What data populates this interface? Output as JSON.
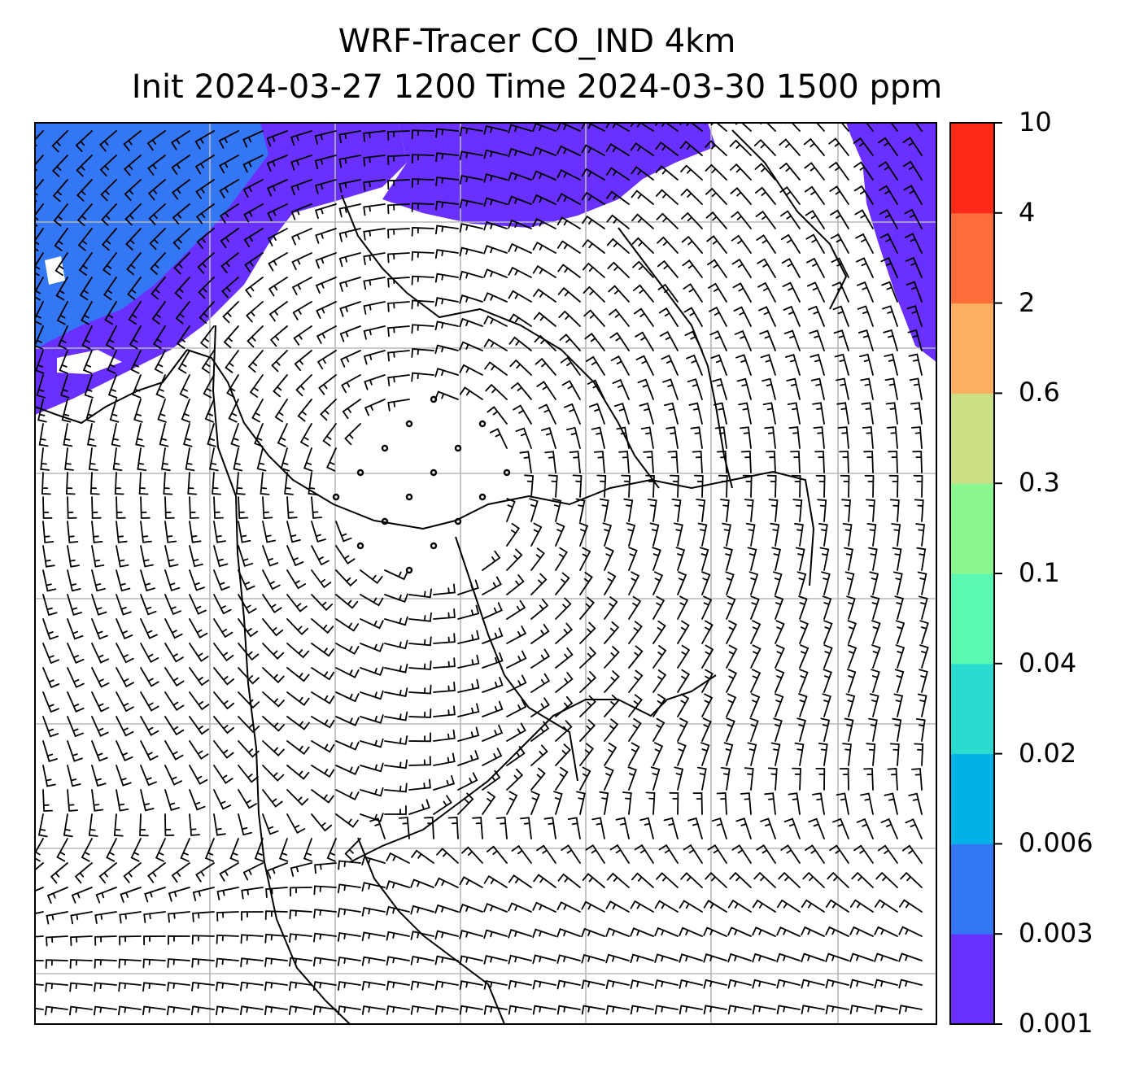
{
  "figure": {
    "title_line1": "WRF-Tracer CO_IND 4km",
    "title_line2": "Init 2024-03-27 1200 Time 2024-03-30 1500 ppm"
  },
  "colorbar": {
    "levels": [
      "0.001",
      "0.003",
      "0.006",
      "0.02",
      "0.04",
      "0.1",
      "0.3",
      "0.6",
      "2",
      "4",
      "10"
    ],
    "colors": [
      "#6a30ff",
      "#3477f5",
      "#02b1e8",
      "#2cdbd0",
      "#5bf8b4",
      "#8cf790",
      "#cbdf84",
      "#fdae61",
      "#ff6e3a",
      "#fe2a18"
    ]
  },
  "map": {
    "projection": "regional",
    "gridlines": "on",
    "wind_barbs": "on",
    "field": "CO_IND tracer",
    "plume_color": "#6a30ff",
    "plume_core_color": "#3477f5"
  }
}
